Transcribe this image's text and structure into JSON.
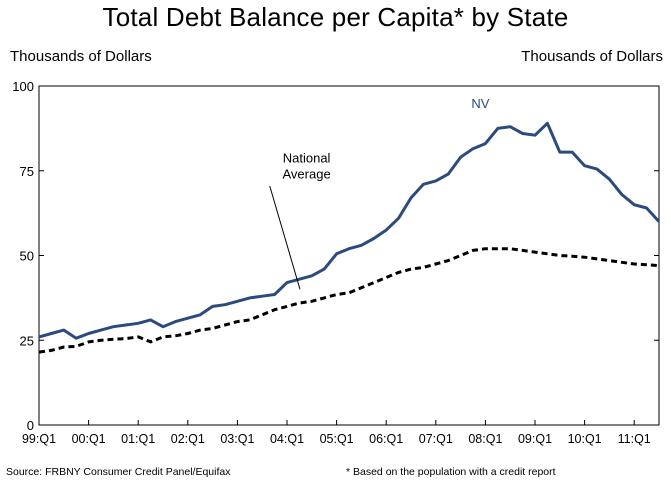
{
  "chart_data": {
    "type": "line",
    "title": "Total Debt Balance per Capita* by State",
    "ylabel_left": "Thousands of Dollars",
    "ylabel_right": "Thousands of Dollars",
    "ylim": [
      0,
      100
    ],
    "yticks": [
      0,
      25,
      50,
      75,
      100
    ],
    "x_start_year": 1999,
    "x_end": 12.5,
    "xticks": [
      "99:Q1",
      "00:Q1",
      "01:Q1",
      "02:Q1",
      "03:Q1",
      "04:Q1",
      "05:Q1",
      "06:Q1",
      "07:Q1",
      "08:Q1",
      "09:Q1",
      "10:Q1",
      "11:Q1"
    ],
    "grid": false,
    "series": [
      {
        "name": "NV",
        "color": "#2b4a7e",
        "style": "solid",
        "x": [
          0,
          0.25,
          0.5,
          0.75,
          1,
          1.25,
          1.5,
          1.75,
          2,
          2.25,
          2.5,
          2.75,
          3,
          3.25,
          3.5,
          3.75,
          4,
          4.25,
          4.5,
          4.75,
          5,
          5.25,
          5.5,
          5.75,
          6,
          6.25,
          6.5,
          6.75,
          7,
          7.25,
          7.5,
          7.75,
          8,
          8.25,
          8.5,
          8.75,
          9,
          9.25,
          9.5,
          9.75,
          10,
          10.25,
          10.5,
          10.75,
          11,
          11.25,
          11.5,
          11.75,
          12,
          12.25,
          12.5
        ],
        "values": [
          26,
          27,
          28,
          25.6,
          27,
          28,
          29,
          29.5,
          30,
          31,
          29,
          30.5,
          31.5,
          32.5,
          35,
          35.5,
          36.5,
          37.5,
          38,
          38.5,
          42,
          43,
          44,
          46,
          50.5,
          52,
          53,
          55,
          57.5,
          61,
          67,
          71,
          72,
          74,
          79,
          81.5,
          83,
          87.5,
          88,
          86,
          85.5,
          89,
          80.5,
          80.5,
          76.5,
          75.5,
          72.5,
          68,
          65,
          64,
          60
        ]
      },
      {
        "name": "National Average",
        "color": "#000000",
        "style": "dashed",
        "x": [
          0,
          0.25,
          0.5,
          0.75,
          1,
          1.25,
          1.5,
          1.75,
          2,
          2.25,
          2.5,
          2.75,
          3,
          3.25,
          3.5,
          3.75,
          4,
          4.25,
          4.5,
          4.75,
          5,
          5.25,
          5.5,
          5.75,
          6,
          6.25,
          6.5,
          6.75,
          7,
          7.25,
          7.5,
          7.75,
          8,
          8.25,
          8.5,
          8.75,
          9,
          9.25,
          9.5,
          9.75,
          10,
          10.25,
          10.5,
          10.75,
          11,
          11.25,
          11.5,
          11.75,
          12,
          12.25,
          12.5
        ],
        "values": [
          21.5,
          22,
          23,
          23.2,
          24.5,
          25,
          25.3,
          25.5,
          26,
          24.5,
          26,
          26.3,
          27,
          28,
          28.5,
          29.5,
          30.5,
          31,
          32.5,
          34,
          35,
          36,
          36.5,
          37.5,
          38.5,
          39,
          40.5,
          42,
          43.5,
          45,
          46,
          46.5,
          47.5,
          48.5,
          50,
          51.5,
          52,
          52,
          52,
          51.5,
          51,
          50.5,
          50,
          49.8,
          49.5,
          49,
          48.5,
          48,
          47.5,
          47.3,
          47
        ]
      }
    ],
    "annotations": {
      "series_label_nv": "NV",
      "series_label_national": [
        "National",
        "Average"
      ]
    }
  },
  "footer": {
    "source": "Source: FRBNY  Consumer Credit Panel/Equifax",
    "note": "* Based on the population  with a credit report"
  }
}
